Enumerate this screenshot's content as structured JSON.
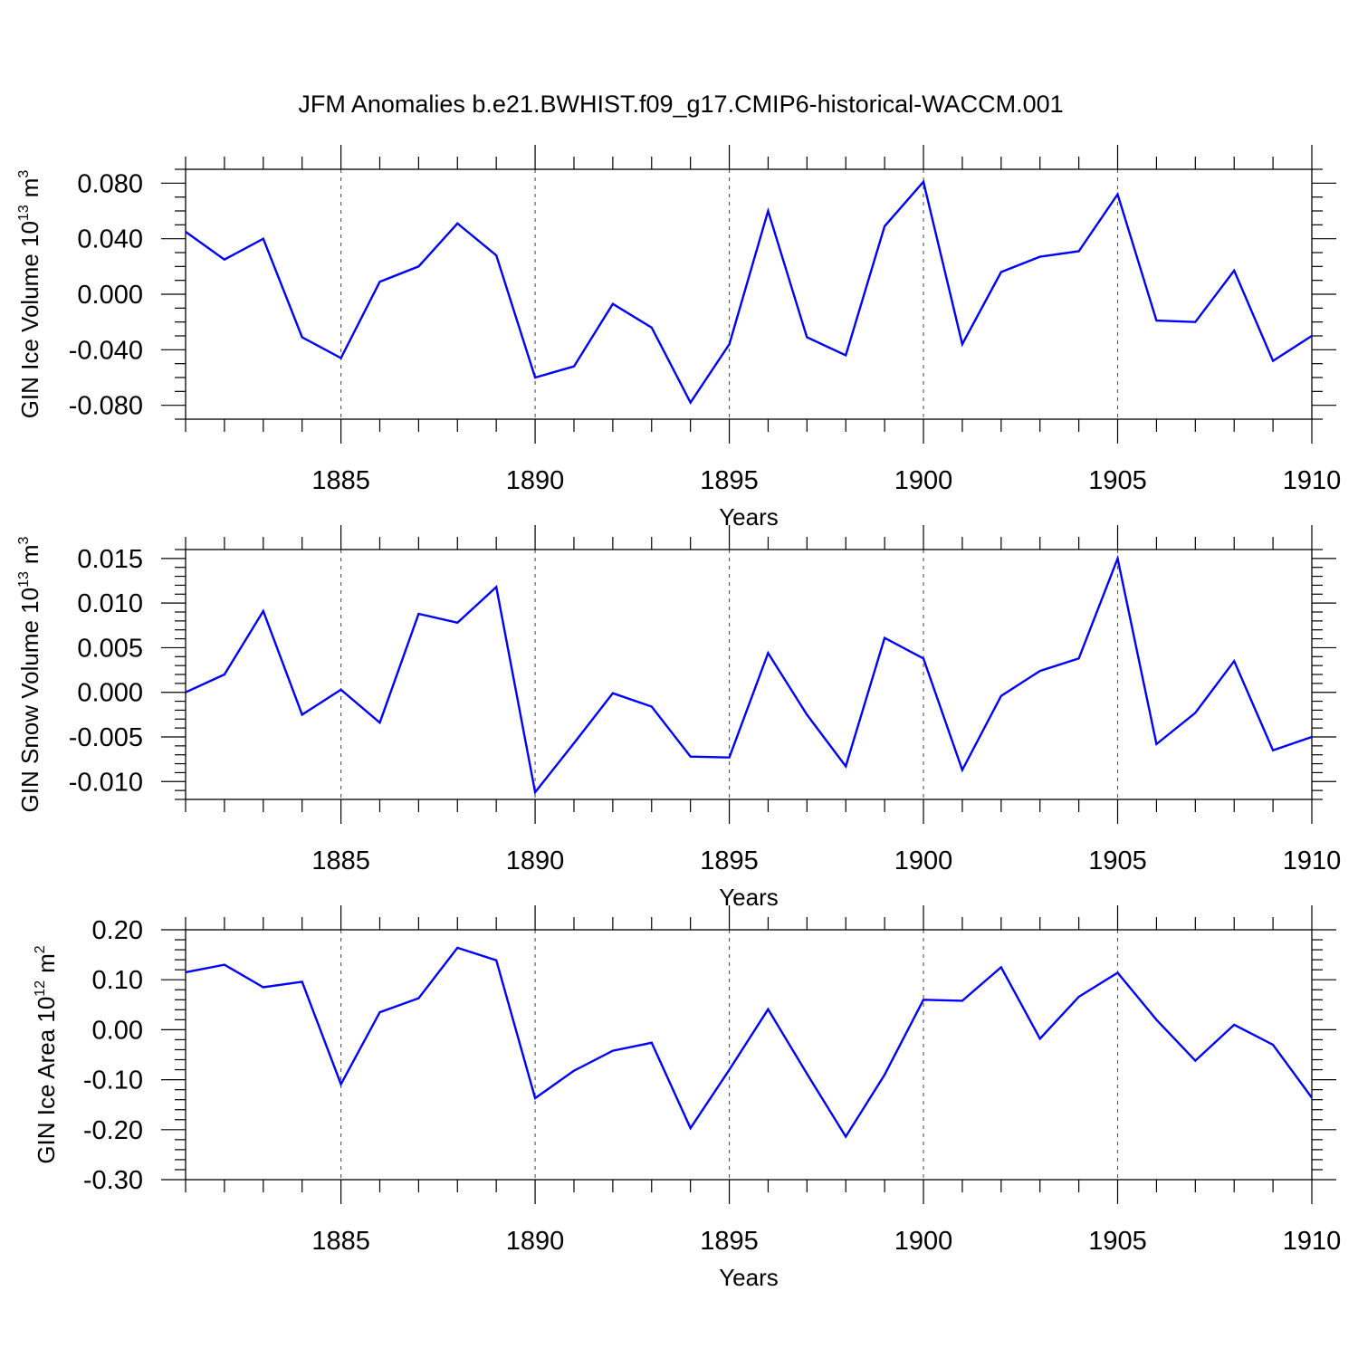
{
  "title": "JFM Anomalies b.e21.BWHIST.f09_g17.CMIP6-historical-WACCM.001",
  "colors": {
    "line": "#0000ff",
    "axis": "#000000",
    "grid": "#555555"
  },
  "chart_data": [
    {
      "type": "line",
      "ylabel": "GIN Ice Volume 10",
      "ylabel_exp": "13",
      "ylabel_unit": "m",
      "ylabel_unit_exp": "3",
      "xlabel": "Years",
      "xlim": [
        1881,
        1910
      ],
      "ylim": [
        -0.09,
        0.09
      ],
      "xticks": [
        1885,
        1890,
        1895,
        1900,
        1905,
        1910
      ],
      "ytick_values": [
        -0.08,
        -0.04,
        0.0,
        0.04,
        0.08
      ],
      "ytick_labels": [
        "-0.080",
        "-0.040",
        "0.000",
        "0.040",
        "0.080"
      ],
      "yminor_step": 0.01,
      "grid": "x-major-dashed",
      "x": [
        1881,
        1882,
        1883,
        1884,
        1885,
        1886,
        1887,
        1888,
        1889,
        1890,
        1891,
        1892,
        1893,
        1894,
        1895,
        1896,
        1897,
        1898,
        1899,
        1900,
        1901,
        1902,
        1903,
        1904,
        1905,
        1906,
        1907,
        1908,
        1909,
        1910
      ],
      "values": [
        0.045,
        0.025,
        0.04,
        -0.031,
        -0.046,
        0.009,
        0.02,
        0.051,
        0.028,
        -0.06,
        -0.052,
        -0.007,
        -0.024,
        -0.078,
        -0.036,
        0.06,
        -0.031,
        -0.044,
        0.049,
        0.081,
        -0.036,
        0.016,
        0.027,
        0.031,
        0.072,
        -0.019,
        -0.02,
        0.017,
        -0.048,
        -0.03
      ]
    },
    {
      "type": "line",
      "ylabel": "GIN Snow Volume 10",
      "ylabel_exp": "13",
      "ylabel_unit": "m",
      "ylabel_unit_exp": "3",
      "xlabel": "Years",
      "xlim": [
        1881,
        1910
      ],
      "ylim": [
        -0.012,
        0.016
      ],
      "xticks": [
        1885,
        1890,
        1895,
        1900,
        1905,
        1910
      ],
      "ytick_values": [
        -0.01,
        -0.005,
        0.0,
        0.005,
        0.01,
        0.015
      ],
      "ytick_labels": [
        "-0.010",
        "-0.005",
        "0.000",
        "0.005",
        "0.010",
        "0.015"
      ],
      "yminor_step": 0.001,
      "grid": "x-major-dashed",
      "x": [
        1881,
        1882,
        1883,
        1884,
        1885,
        1886,
        1887,
        1888,
        1889,
        1890,
        1891,
        1892,
        1893,
        1894,
        1895,
        1896,
        1897,
        1898,
        1899,
        1900,
        1901,
        1902,
        1903,
        1904,
        1905,
        1906,
        1907,
        1908,
        1909,
        1910
      ],
      "values": [
        0.0,
        0.002,
        0.0091,
        -0.0025,
        0.0003,
        -0.0034,
        0.0088,
        0.0078,
        0.0118,
        -0.0112,
        -0.0057,
        -0.0001,
        -0.0016,
        -0.0072,
        -0.0073,
        0.0044,
        -0.0025,
        -0.0083,
        0.0061,
        0.0038,
        -0.0087,
        -0.0004,
        0.0024,
        0.0038,
        0.015,
        -0.0058,
        -0.0023,
        0.0035,
        -0.0065,
        -0.005
      ]
    },
    {
      "type": "line",
      "ylabel": "GIN Ice Area 10",
      "ylabel_exp": "12",
      "ylabel_unit": "m",
      "ylabel_unit_exp": "2",
      "xlabel": "Years",
      "xlim": [
        1881,
        1910
      ],
      "ylim": [
        -0.3,
        0.2
      ],
      "xticks": [
        1885,
        1890,
        1895,
        1900,
        1905,
        1910
      ],
      "ytick_values": [
        -0.3,
        -0.2,
        -0.1,
        0.0,
        0.1,
        0.2
      ],
      "ytick_labels": [
        "-0.30",
        "-0.20",
        "-0.10",
        "0.00",
        "0.10",
        "0.20"
      ],
      "yminor_step": 0.02,
      "grid": "x-major-dashed",
      "x": [
        1881,
        1882,
        1883,
        1884,
        1885,
        1886,
        1887,
        1888,
        1889,
        1890,
        1891,
        1892,
        1893,
        1894,
        1895,
        1896,
        1897,
        1898,
        1899,
        1900,
        1901,
        1902,
        1903,
        1904,
        1905,
        1906,
        1907,
        1908,
        1909,
        1910
      ],
      "values": [
        0.115,
        0.13,
        0.085,
        0.096,
        -0.109,
        0.035,
        0.063,
        0.164,
        0.139,
        -0.137,
        -0.082,
        -0.042,
        -0.026,
        -0.197,
        -0.08,
        0.041,
        -0.088,
        -0.214,
        -0.09,
        0.06,
        0.058,
        0.125,
        -0.018,
        0.066,
        0.114,
        0.02,
        -0.062,
        0.01,
        -0.03,
        -0.136
      ]
    }
  ]
}
